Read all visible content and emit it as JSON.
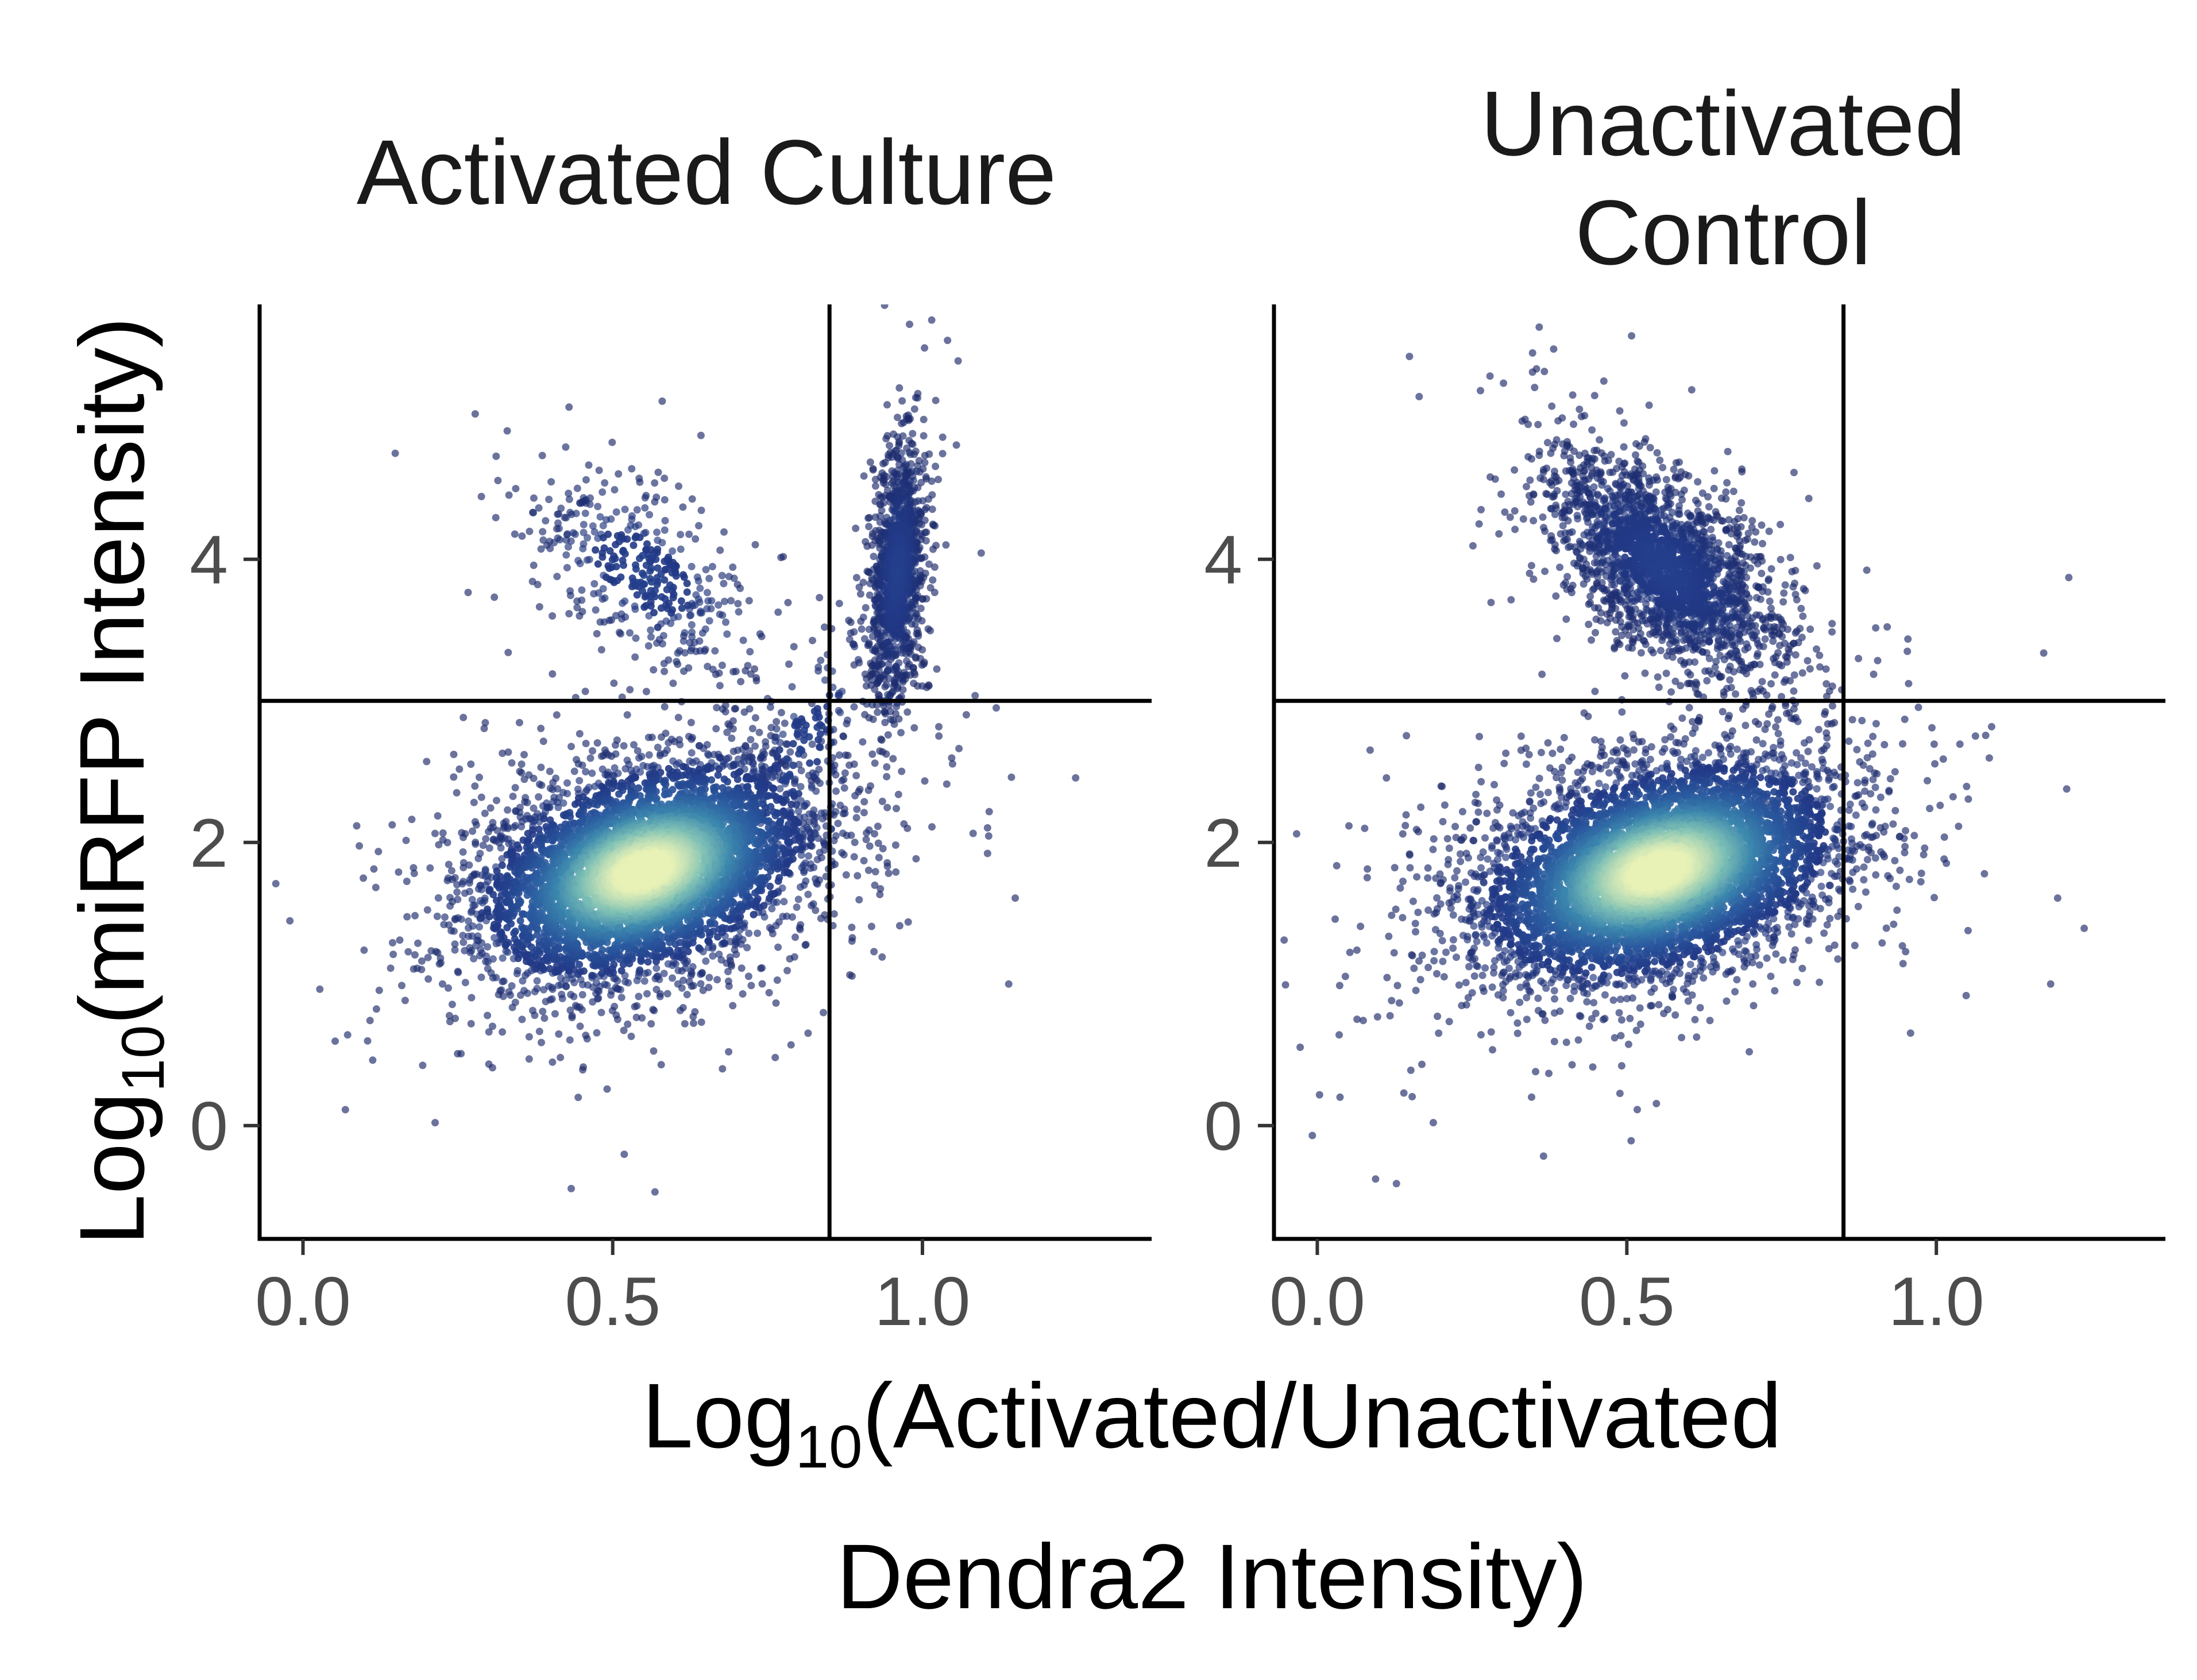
{
  "chart_data": {
    "type": "scatter",
    "xlabel": {
      "line1_prefix": "Log",
      "line1_sub": "10",
      "line1_rest": "(Activated/Unactivated",
      "line2": "Dendra2 Intensity)"
    },
    "ylabel": {
      "prefix": "Log",
      "sub": "10",
      "rest": "(miRFP Intensity)"
    },
    "xlim": [
      -0.07,
      1.37
    ],
    "ylim": [
      -0.8,
      5.8
    ],
    "x_ticks": [
      "0.0",
      "0.5",
      "1.0"
    ],
    "y_ticks": [
      "0",
      "2",
      "4"
    ],
    "x_tick_values": [
      0.0,
      0.5,
      1.0
    ],
    "y_tick_values": [
      0,
      2,
      4
    ],
    "thresholds": {
      "x": 0.85,
      "y": 3.0
    },
    "colormap": [
      "#1b2868",
      "#223b89",
      "#2a5a9f",
      "#3b86ad",
      "#7ec0b5",
      "#e9f2b6"
    ],
    "panels": [
      {
        "title_lines": [
          "Activated Culture"
        ],
        "clusters": [
          {
            "name": "main",
            "n": 5200,
            "cx": 0.55,
            "cy": 1.8,
            "sx": 0.13,
            "sy": 0.38,
            "rho": 0.35
          },
          {
            "name": "upper-left",
            "n": 420,
            "cx": 0.55,
            "cy": 3.9,
            "sx": 0.09,
            "sy": 0.35,
            "rho": -0.55
          },
          {
            "name": "upper-right",
            "n": 1200,
            "cx": 0.96,
            "cy": 3.9,
            "sx": 0.022,
            "sy": 0.45,
            "rho": 0.3
          },
          {
            "name": "bridge",
            "n": 180,
            "cx": 0.8,
            "cy": 2.6,
            "sx": 0.07,
            "sy": 0.55,
            "rho": 0.8
          }
        ]
      },
      {
        "title_lines": [
          "Unactivated",
          "Control"
        ],
        "clusters": [
          {
            "name": "main",
            "n": 5600,
            "cx": 0.55,
            "cy": 1.8,
            "sx": 0.14,
            "sy": 0.38,
            "rho": 0.35
          },
          {
            "name": "upper",
            "n": 2200,
            "cx": 0.56,
            "cy": 3.95,
            "sx": 0.09,
            "sy": 0.38,
            "rho": -0.6
          }
        ]
      }
    ]
  }
}
